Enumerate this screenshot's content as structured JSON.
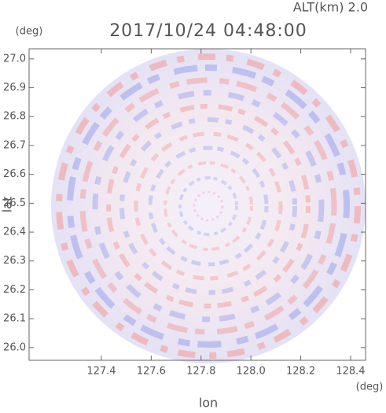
{
  "chart_data": {
    "type": "heatmap",
    "title": "2017/10/24 04:48:00",
    "subtitle": "ALT(km) 2.0",
    "x_label": "lon",
    "y_label": "lat",
    "x_unit": "(deg)",
    "y_unit": "(deg)",
    "xlim": [
      127.11,
      128.46
    ],
    "ylim": [
      25.956,
      27.035
    ],
    "xticks": [
      127.4,
      127.6,
      127.8,
      128.0,
      128.2,
      128.4
    ],
    "yticks": [
      26.0,
      26.1,
      26.2,
      26.3,
      26.4,
      26.5,
      26.6,
      26.7,
      26.8,
      26.9,
      27.0
    ]
  }
}
